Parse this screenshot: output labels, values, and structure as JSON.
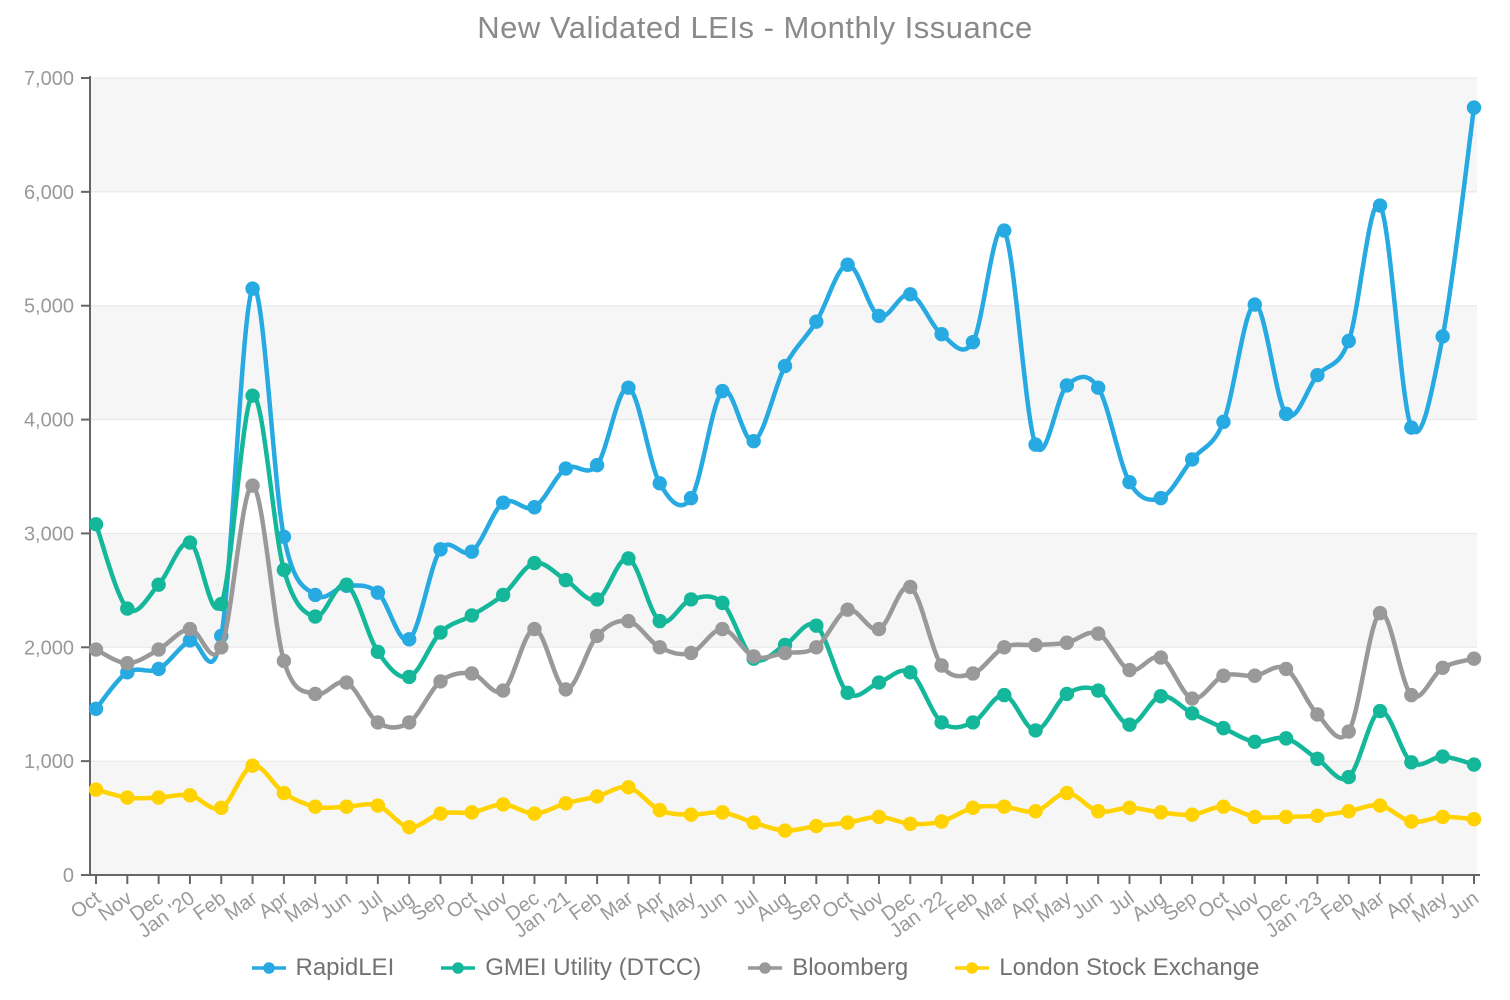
{
  "chart_data": {
    "type": "line",
    "title": "New Validated LEIs - Monthly Issuance",
    "categories": [
      "Oct",
      "Nov",
      "Dec",
      "Jan '20",
      "Feb",
      "Mar",
      "Apr",
      "May",
      "Jun",
      "Jul",
      "Aug",
      "Sep",
      "Oct",
      "Nov",
      "Dec",
      "Jan '21",
      "Feb",
      "Mar",
      "Apr",
      "May",
      "Jun",
      "Jul",
      "Aug",
      "Sep",
      "Oct",
      "Nov",
      "Dec",
      "Jan '22",
      "Feb",
      "Mar",
      "Apr",
      "May",
      "Jun",
      "Jul",
      "Aug",
      "Sep",
      "Oct",
      "Nov",
      "Dec",
      "Jan '23",
      "Feb",
      "Mar",
      "Apr",
      "May",
      "Jun"
    ],
    "series": [
      {
        "name": "RapidLEI",
        "color": "#27AAE1",
        "values": [
          1460,
          1780,
          1810,
          2060,
          2100,
          5150,
          2970,
          2460,
          2540,
          2480,
          2070,
          2860,
          2840,
          3270,
          3230,
          3570,
          3600,
          4280,
          3440,
          3310,
          4250,
          3810,
          4470,
          4860,
          5360,
          4910,
          5100,
          4750,
          4680,
          5660,
          3780,
          4300,
          4280,
          3450,
          3310,
          3650,
          3980,
          5010,
          4050,
          4390,
          4690,
          5880,
          3930,
          4730,
          6740
        ]
      },
      {
        "name": "GMEI Utility (DTCC)",
        "color": "#15B79B",
        "values": [
          3080,
          2340,
          2550,
          2920,
          2380,
          4210,
          2680,
          2270,
          2550,
          1960,
          1740,
          2130,
          2280,
          2460,
          2740,
          2590,
          2420,
          2780,
          2230,
          2420,
          2390,
          1900,
          2020,
          2190,
          1600,
          1690,
          1780,
          1340,
          1340,
          1580,
          1270,
          1590,
          1620,
          1320,
          1570,
          1420,
          1290,
          1170,
          1200,
          1020,
          860,
          1440,
          990,
          1040,
          970
        ]
      },
      {
        "name": "Bloomberg",
        "color": "#999999",
        "values": [
          1980,
          1860,
          1980,
          2160,
          2000,
          3420,
          1880,
          1590,
          1690,
          1340,
          1340,
          1700,
          1770,
          1620,
          2160,
          1630,
          2100,
          2230,
          2000,
          1950,
          2160,
          1920,
          1950,
          2000,
          2330,
          2160,
          2530,
          1840,
          1770,
          2000,
          2020,
          2040,
          2120,
          1800,
          1910,
          1550,
          1750,
          1750,
          1810,
          1410,
          1260,
          2300,
          1580,
          1820,
          1900
        ]
      },
      {
        "name": "London Stock Exchange",
        "color": "#FFD200",
        "values": [
          750,
          680,
          680,
          700,
          590,
          960,
          720,
          600,
          600,
          610,
          420,
          540,
          550,
          620,
          540,
          630,
          690,
          770,
          570,
          530,
          550,
          460,
          390,
          430,
          460,
          510,
          450,
          470,
          590,
          600,
          560,
          720,
          560,
          590,
          550,
          530,
          600,
          510,
          510,
          520,
          560,
          610,
          470,
          510,
          490
        ]
      }
    ],
    "ylim": [
      0,
      7000
    ],
    "y_tick_step": 1000,
    "y_tick_labels": [
      "0",
      "1,000",
      "2,000",
      "3,000",
      "4,000",
      "5,000",
      "6,000",
      "7,000"
    ],
    "grid": "horizontal",
    "legend_position": "bottom",
    "xlabel": "",
    "ylabel": ""
  },
  "styles": {
    "title_color": "#8a8a8a",
    "axis_line_color": "#666666",
    "tick_label_color": "#999999",
    "legend_text_color": "#737373",
    "gridline_color": "#e7e7e7",
    "band_fill": "#f6f6f6",
    "plot_background": "#ffffff"
  }
}
